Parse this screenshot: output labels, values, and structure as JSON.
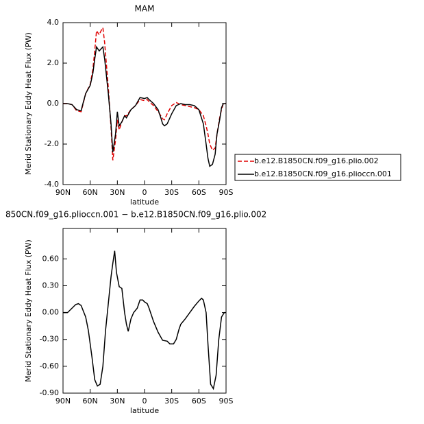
{
  "chart_data": [
    {
      "type": "line",
      "title": "MAM",
      "x_label": "latitude",
      "y_label": "Merid Stationary Eddy Heat Flux (PW)",
      "xlim": [
        90,
        -90
      ],
      "xticks": [
        {
          "value": 90,
          "label": "90N"
        },
        {
          "value": 60,
          "label": "60N"
        },
        {
          "value": 30,
          "label": "30N"
        },
        0,
        {
          "value": -30,
          "label": "30S"
        },
        {
          "value": -60,
          "label": "60S"
        },
        {
          "value": -90,
          "label": "90S"
        }
      ],
      "ylim": [
        -4,
        4
      ],
      "yticks": [
        {
          "value": -4,
          "label": "-4.0"
        },
        {
          "value": -2,
          "label": "-2.0"
        },
        {
          "value": 0,
          "label": "0.0"
        },
        {
          "value": 2,
          "label": "2.0"
        },
        {
          "value": 4,
          "label": "4.0"
        }
      ],
      "legend": "right",
      "x": [
        90,
        85,
        80,
        75,
        70,
        68,
        65,
        60,
        57,
        55,
        53,
        50,
        48,
        46,
        44,
        40,
        37,
        35,
        32,
        30,
        28,
        25,
        22,
        20,
        15,
        10,
        5,
        0,
        -3,
        -5,
        -10,
        -15,
        -18,
        -20,
        -22,
        -25,
        -30,
        -35,
        -40,
        -45,
        -50,
        -55,
        -60,
        -65,
        -68,
        -70,
        -72,
        -75,
        -78,
        -80,
        -83,
        -85,
        -87,
        -90
      ],
      "series": [
        {
          "name": "b.e12.B1850CN.f09_g16.plio.002",
          "color": "#e00000",
          "linestyle": "dashed",
          "values": [
            0,
            0,
            -0.05,
            -0.35,
            -0.4,
            -0.05,
            0.5,
            0.95,
            1.7,
            2.6,
            3.6,
            3.4,
            3.6,
            3.75,
            3.0,
            0.8,
            -1.2,
            -2.8,
            -1.8,
            -0.8,
            -1.3,
            -0.9,
            -0.6,
            -0.6,
            -0.3,
            -0.1,
            0.2,
            0.15,
            0.2,
            0.1,
            -0.1,
            -0.4,
            -0.6,
            -0.75,
            -0.8,
            -0.5,
            -0.1,
            0.05,
            -0.05,
            -0.1,
            -0.15,
            -0.2,
            -0.3,
            -0.6,
            -1.1,
            -1.5,
            -2.0,
            -2.3,
            -2.2,
            -1.5,
            -0.7,
            -0.3,
            0,
            0
          ]
        },
        {
          "name": "b.e12.B1850CN.f09_g16.plioccn.001",
          "color": "#000000",
          "linestyle": "solid",
          "values": [
            0,
            0,
            -0.05,
            -0.3,
            -0.35,
            0,
            0.5,
            0.9,
            1.5,
            2.2,
            2.8,
            2.6,
            2.7,
            2.8,
            2.2,
            0.5,
            -1.0,
            -2.4,
            -1.5,
            -0.4,
            -1.1,
            -0.9,
            -0.6,
            -0.7,
            -0.3,
            -0.1,
            0.3,
            0.25,
            0.3,
            0.2,
            0,
            -0.3,
            -0.7,
            -1.0,
            -1.1,
            -1.0,
            -0.5,
            -0.1,
            0,
            -0.05,
            -0.05,
            -0.1,
            -0.3,
            -1.0,
            -2.0,
            -2.7,
            -3.1,
            -3.0,
            -2.5,
            -1.5,
            -0.8,
            -0.2,
            0,
            0
          ]
        }
      ]
    },
    {
      "type": "line",
      "title": "850CN.f09_g16.plioccn.001 − b.e12.B1850CN.f09_g16.plio.002",
      "x_label": "latitude",
      "y_label": "Merid Stationary Eddy Heat Flux (PW)",
      "xlim": [
        90,
        -90
      ],
      "xticks": [
        {
          "value": 90,
          "label": "90N"
        },
        {
          "value": 60,
          "label": "60N"
        },
        {
          "value": 30,
          "label": "30N"
        },
        0,
        {
          "value": -30,
          "label": "30S"
        },
        {
          "value": -60,
          "label": "60S"
        },
        {
          "value": -90,
          "label": "90S"
        }
      ],
      "ylim": [
        -0.9,
        0.94
      ],
      "yticks": [
        {
          "value": -0.9,
          "label": "-0.90"
        },
        {
          "value": -0.6,
          "label": "-0.60"
        },
        {
          "value": -0.3,
          "label": "-0.30"
        },
        {
          "value": 0,
          "label": "0.00"
        },
        {
          "value": 0.3,
          "label": "0.30"
        },
        {
          "value": 0.6,
          "label": "0.60"
        }
      ],
      "x": [
        90,
        85,
        80,
        76,
        73,
        70,
        65,
        62,
        58,
        55,
        52,
        49,
        46,
        43,
        40,
        37,
        35,
        33,
        31,
        28,
        25,
        22,
        20,
        18,
        15,
        12,
        8,
        5,
        2,
        0,
        -3,
        -5,
        -10,
        -15,
        -20,
        -25,
        -28,
        -32,
        -35,
        -38,
        -40,
        -45,
        -50,
        -55,
        -60,
        -63,
        -65,
        -68,
        -70,
        -73,
        -76,
        -79,
        -82,
        -85,
        -88,
        -90
      ],
      "series": [
        {
          "color": "#000000",
          "linestyle": "solid",
          "values": [
            0,
            0,
            0.05,
            0.09,
            0.1,
            0.08,
            -0.05,
            -0.2,
            -0.5,
            -0.75,
            -0.82,
            -0.8,
            -0.6,
            -0.2,
            0.1,
            0.4,
            0.55,
            0.69,
            0.45,
            0.29,
            0.27,
            0,
            -0.13,
            -0.21,
            -0.07,
            0,
            0.05,
            0.14,
            0.14,
            0.12,
            0.1,
            0.05,
            -0.1,
            -0.22,
            -0.31,
            -0.32,
            -0.35,
            -0.35,
            -0.3,
            -0.19,
            -0.13,
            -0.07,
            0,
            0.07,
            0.13,
            0.16,
            0.14,
            0,
            -0.35,
            -0.8,
            -0.85,
            -0.7,
            -0.3,
            -0.05,
            0,
            0
          ]
        }
      ]
    }
  ]
}
